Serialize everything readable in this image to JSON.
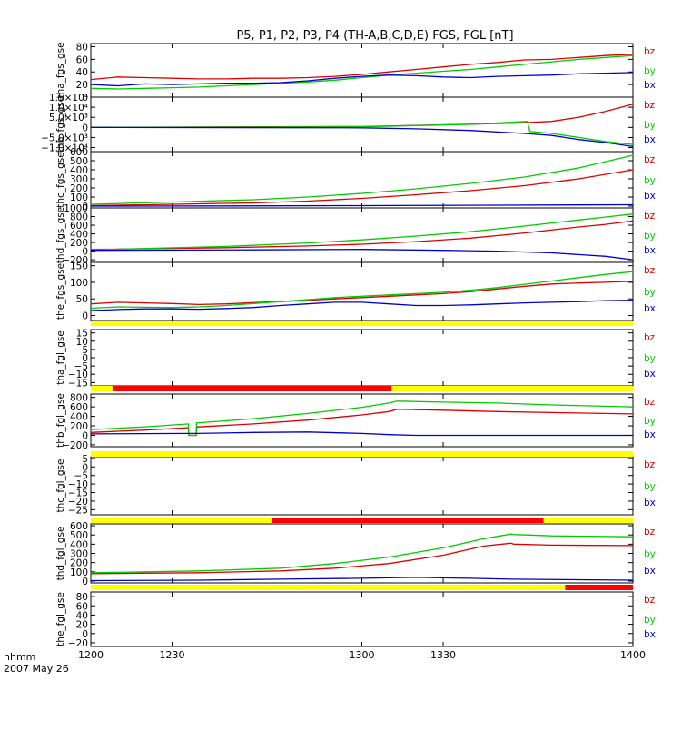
{
  "title": "P5, P1, P2, P3, P4 (TH-A,B,C,D,E) FGS, FGL [nT]",
  "footer": {
    "line1": "hhmm",
    "line2": "2007 May 26"
  },
  "colors": {
    "bz": "#dd0000",
    "by": "#00cc00",
    "bx": "#0000cc",
    "bar_yellow": "#ffff00",
    "bar_red": "#ff0000",
    "axis": "#000000"
  },
  "chart_data": {
    "type": "line",
    "x_axis": {
      "range": [
        1200,
        1400
      ],
      "ticks": [
        "1200",
        "1230",
        "1300",
        "1330",
        "1400"
      ]
    },
    "legend": [
      "bz",
      "by",
      "bx"
    ],
    "panels": [
      {
        "ylabel": "tha_fgs_gse",
        "ylim": [
          0,
          85
        ],
        "yticks": [
          "80",
          "60",
          "40",
          "20",
          "0"
        ],
        "yticks_v": [
          80,
          60,
          40,
          20,
          0
        ],
        "series": [
          {
            "name": "bz",
            "x": [
              1200,
              1210,
              1220,
              1230,
              1240,
              1250,
              1260,
              1270,
              1280,
              1290,
              1300,
              1310,
              1320,
              1330,
              1340,
              1350,
              1360,
              1370,
              1380,
              1390,
              1400
            ],
            "values": [
              28,
              32,
              31,
              30,
              29,
              29,
              30,
              30,
              31,
              33,
              36,
              40,
              44,
              48,
              52,
              55,
              59,
              60,
              63,
              66,
              68
            ]
          },
          {
            "name": "by",
            "x": [
              1200,
              1210,
              1220,
              1230,
              1240,
              1250,
              1260,
              1270,
              1280,
              1290,
              1300,
              1310,
              1320,
              1330,
              1340,
              1350,
              1360,
              1370,
              1380,
              1390,
              1400
            ],
            "values": [
              14,
              13,
              14,
              15,
              16,
              18,
              20,
              22,
              24,
              27,
              31,
              35,
              38,
              41,
              44,
              48,
              52,
              56,
              60,
              63,
              66
            ]
          },
          {
            "name": "bx",
            "x": [
              1200,
              1210,
              1220,
              1230,
              1240,
              1250,
              1260,
              1270,
              1280,
              1290,
              1300,
              1310,
              1320,
              1330,
              1340,
              1350,
              1360,
              1370,
              1380,
              1390,
              1400
            ],
            "values": [
              20,
              18,
              21,
              20,
              21,
              22,
              22,
              23,
              26,
              30,
              33,
              35,
              34,
              32,
              31,
              33,
              34,
              35,
              37,
              38,
              39
            ]
          }
        ]
      },
      {
        "ylabel": "thb_fgs_gse",
        "ylim": [
          -12000,
          15000
        ],
        "yticks": [
          "1.5×10⁴",
          "1.0×10⁴",
          "5.0×10³",
          "0",
          "−5.0×10³",
          "−1.0×10⁴"
        ],
        "yticks_v": [
          15000,
          10000,
          5000,
          0,
          -5000,
          -10000
        ],
        "series": [
          {
            "name": "bz",
            "x": [
              1200,
              1300,
              1340,
              1360,
              1370,
              1380,
              1390,
              1400
            ],
            "values": [
              0,
              400,
              1600,
              2300,
              3000,
              5000,
              8000,
              11500
            ]
          },
          {
            "name": "by",
            "x": [
              1200,
              1300,
              1340,
              1361,
              1362,
              1370,
              1380,
              1390,
              1400
            ],
            "values": [
              0,
              300,
              1500,
              3000,
              -2000,
              -3000,
              -5000,
              -7000,
              -8500
            ]
          },
          {
            "name": "bx",
            "x": [
              1200,
              1300,
              1320,
              1340,
              1360,
              1370,
              1380,
              1390,
              1400
            ],
            "values": [
              0,
              -200,
              -700,
              -1500,
              -3000,
              -4000,
              -6000,
              -7500,
              -9500
            ]
          }
        ]
      },
      {
        "ylabel": "thc_fgs_gse",
        "ylim": [
          -20,
          600
        ],
        "yticks": [
          "600",
          "500",
          "400",
          "300",
          "200",
          "100",
          "0"
        ],
        "yticks_v": [
          600,
          500,
          400,
          300,
          200,
          100,
          0
        ],
        "series": [
          {
            "name": "bz",
            "x": [
              1200,
              1230,
              1260,
              1280,
              1300,
              1320,
              1340,
              1360,
              1380,
              1400
            ],
            "values": [
              5,
              20,
              35,
              55,
              85,
              125,
              170,
              225,
              300,
              400
            ]
          },
          {
            "name": "by",
            "x": [
              1200,
              1230,
              1260,
              1280,
              1300,
              1320,
              1340,
              1360,
              1380,
              1400
            ],
            "values": [
              20,
              45,
              70,
              100,
              140,
              190,
              250,
              320,
              420,
              560
            ]
          },
          {
            "name": "bx",
            "x": [
              1200,
              1250,
              1300,
              1350,
              1400
            ],
            "values": [
              0,
              2,
              5,
              10,
              15
            ]
          }
        ]
      },
      {
        "ylabel": "thd_fgs_gse",
        "ylim": [
          -260,
          1000
        ],
        "yticks": [
          "1000",
          "800",
          "600",
          "400",
          "200",
          "0",
          "−200"
        ],
        "yticks_v": [
          1000,
          800,
          600,
          400,
          200,
          0,
          -200
        ],
        "series": [
          {
            "name": "bz",
            "x": [
              1200,
              1250,
              1280,
              1300,
              1320,
              1340,
              1360,
              1380,
              1390,
              1400
            ],
            "values": [
              40,
              80,
              120,
              160,
              220,
              300,
              420,
              560,
              620,
              700
            ]
          },
          {
            "name": "by",
            "x": [
              1200,
              1250,
              1280,
              1300,
              1320,
              1340,
              1360,
              1380,
              1390,
              1400
            ],
            "values": [
              30,
              110,
              190,
              260,
              350,
              450,
              580,
              720,
              790,
              860
            ]
          },
          {
            "name": "bx",
            "x": [
              1200,
              1260,
              1300,
              1330,
              1350,
              1370,
              1390,
              1400
            ],
            "values": [
              20,
              30,
              40,
              20,
              0,
              -40,
              -120,
              -200
            ]
          }
        ]
      },
      {
        "ylabel": "the_fgs_gse",
        "ylim": [
          -15,
          160
        ],
        "yticks": [
          "150",
          "100",
          "50",
          "0"
        ],
        "yticks_v": [
          150,
          100,
          50,
          0
        ],
        "series": [
          {
            "name": "bz",
            "x": [
              1200,
              1210,
              1220,
              1230,
              1240,
              1250,
              1260,
              1270,
              1280,
              1290,
              1300,
              1310,
              1320,
              1330,
              1340,
              1350,
              1360,
              1370,
              1380,
              1390,
              1400
            ],
            "values": [
              35,
              40,
              38,
              36,
              33,
              35,
              39,
              42,
              46,
              50,
              54,
              58,
              62,
              66,
              72,
              80,
              88,
              95,
              98,
              100,
              103
            ]
          },
          {
            "name": "by",
            "x": [
              1200,
              1210,
              1220,
              1230,
              1240,
              1250,
              1260,
              1270,
              1280,
              1290,
              1300,
              1310,
              1320,
              1330,
              1340,
              1350,
              1360,
              1370,
              1380,
              1390,
              1400
            ],
            "values": [
              22,
              26,
              25,
              24,
              26,
              30,
              36,
              42,
              48,
              54,
              58,
              62,
              66,
              70,
              76,
              84,
              94,
              104,
              114,
              124,
              132
            ]
          },
          {
            "name": "bx",
            "x": [
              1200,
              1210,
              1220,
              1230,
              1240,
              1250,
              1260,
              1270,
              1280,
              1290,
              1300,
              1310,
              1320,
              1330,
              1340,
              1350,
              1360,
              1370,
              1380,
              1390,
              1400
            ],
            "values": [
              15,
              18,
              20,
              20,
              19,
              21,
              24,
              30,
              35,
              40,
              40,
              35,
              30,
              30,
              32,
              35,
              38,
              40,
              42,
              45,
              46
            ]
          }
        ]
      },
      {
        "ylabel": "tha_fgl_gse",
        "ylim": [
          -17,
          17
        ],
        "yticks": [
          "15",
          "10",
          "5",
          "0",
          "−5",
          "−10",
          "−15"
        ],
        "yticks_v": [
          15,
          10,
          5,
          0,
          -5,
          -10,
          -15
        ],
        "series": []
      },
      {
        "ylabel": "thb_fgl_gse",
        "ylim": [
          -240,
          870
        ],
        "yticks": [
          "800",
          "600",
          "400",
          "200",
          "0",
          "−200"
        ],
        "yticks_v": [
          800,
          600,
          400,
          200,
          0,
          -200
        ],
        "series": [
          {
            "name": "bz",
            "x": [
              1200,
              1220,
              1236.0,
              1236.1,
              1238.9,
              1239.0,
              1260,
              1280,
              1300,
              1310,
              1313,
              1330,
              1350,
              1370,
              1400
            ],
            "values": [
              60,
              110,
              160,
              0,
              0,
              175,
              240,
              320,
              430,
              500,
              550,
              530,
              500,
              480,
              450
            ]
          },
          {
            "name": "by",
            "x": [
              1200,
              1220,
              1236.0,
              1236.1,
              1238.9,
              1239.0,
              1260,
              1280,
              1300,
              1310,
              1313,
              1330,
              1350,
              1370,
              1400
            ],
            "values": [
              120,
              180,
              240,
              0,
              0,
              260,
              350,
              460,
              590,
              680,
              720,
              700,
              680,
              640,
              600
            ]
          },
          {
            "name": "bx",
            "x": [
              1200,
              1236,
              1239,
              1260,
              1280,
              1300,
              1310,
              1320,
              1340,
              1400
            ],
            "values": [
              30,
              40,
              40,
              60,
              70,
              40,
              15,
              0,
              0,
              0
            ]
          }
        ]
      },
      {
        "ylabel": "thc_fgl_gse",
        "ylim": [
          -28,
          6
        ],
        "yticks": [
          "5",
          "0",
          "−5",
          "−10",
          "−15",
          "−20",
          "−25"
        ],
        "yticks_v": [
          5,
          0,
          -5,
          -10,
          -15,
          -20,
          -25
        ],
        "series": []
      },
      {
        "ylabel": "thd_fgl_gse",
        "ylim": [
          -20,
          620
        ],
        "yticks": [
          "600",
          "500",
          "400",
          "300",
          "200",
          "100",
          "0"
        ],
        "yticks_v": [
          600,
          500,
          400,
          300,
          200,
          100,
          0
        ],
        "series": [
          {
            "name": "bz",
            "x": [
              1200,
              1240,
              1270,
              1290,
              1310,
              1330,
              1345,
              1355,
              1356,
              1370,
              1400
            ],
            "values": [
              80,
              90,
              110,
              140,
              190,
              280,
              380,
              410,
              400,
              390,
              385
            ]
          },
          {
            "name": "by",
            "x": [
              1200,
              1240,
              1270,
              1290,
              1310,
              1330,
              1345,
              1355,
              1356,
              1370,
              1400
            ],
            "values": [
              90,
              110,
              140,
              190,
              260,
              360,
              460,
              510,
              505,
              490,
              480
            ]
          },
          {
            "name": "bx",
            "x": [
              1200,
              1240,
              1270,
              1300,
              1320,
              1340,
              1355,
              1400
            ],
            "values": [
              5,
              10,
              20,
              30,
              40,
              30,
              20,
              10
            ]
          }
        ]
      },
      {
        "ylabel": "the_fgl_gse",
        "ylim": [
          -28,
          90
        ],
        "yticks": [
          "80",
          "60",
          "40",
          "20",
          "0",
          "−20"
        ],
        "yticks_v": [
          80,
          60,
          40,
          20,
          0,
          -20
        ],
        "series": []
      }
    ],
    "availability_bars": [
      {
        "after_panel": "the_fgs_gse",
        "segments": [
          {
            "from": 1200,
            "to": 1400,
            "color": "yellow"
          }
        ]
      },
      {
        "after_panel": "tha_fgl_gse",
        "segments": [
          {
            "from": 1200,
            "to": 1208,
            "color": "yellow"
          },
          {
            "from": 1208,
            "to": 1311,
            "color": "red"
          },
          {
            "from": 1311,
            "to": 1400,
            "color": "yellow"
          }
        ]
      },
      {
        "after_panel": "thb_fgl_gse",
        "segments": [
          {
            "from": 1200,
            "to": 1400,
            "color": "yellow"
          }
        ]
      },
      {
        "after_panel": "thc_fgl_gse",
        "segments": [
          {
            "from": 1200,
            "to": 1267,
            "color": "yellow"
          },
          {
            "from": 1267,
            "to": 1367,
            "color": "red"
          },
          {
            "from": 1367,
            "to": 1400,
            "color": "yellow"
          }
        ]
      },
      {
        "after_panel": "thd_fgl_gse",
        "segments": [
          {
            "from": 1200,
            "to": 1375,
            "color": "yellow"
          },
          {
            "from": 1375,
            "to": 1400,
            "color": "red"
          }
        ]
      }
    ]
  }
}
